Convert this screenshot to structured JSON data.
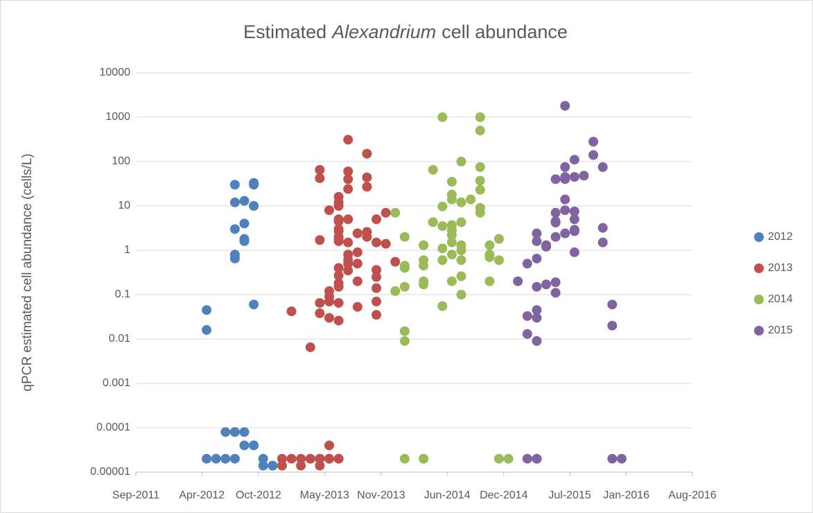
{
  "chart_data": {
    "type": "scatter",
    "title": [
      "Estimated",
      "Alexandrium",
      "cell abundance"
    ],
    "ylabel": "qPCR estimated cell abundance (cells/L)",
    "log_y": true,
    "grid": true,
    "legend": "right",
    "xlim": [
      "2011-09",
      "2016-08"
    ],
    "xticks": [
      {
        "value": "2011-09",
        "label": "Sep-2011"
      },
      {
        "value": "2012-04",
        "label": "Apr-2012"
      },
      {
        "value": "2012-10",
        "label": "Oct-2012"
      },
      {
        "value": "2013-05",
        "label": "May-2013"
      },
      {
        "value": "2013-11",
        "label": "Nov-2013"
      },
      {
        "value": "2014-06",
        "label": "Jun-2014"
      },
      {
        "value": "2014-12",
        "label": "Dec-2014"
      },
      {
        "value": "2015-07",
        "label": "Jul-2015"
      },
      {
        "value": "2016-01",
        "label": "Jan-2016"
      },
      {
        "value": "2016-08",
        "label": "Aug-2016"
      }
    ],
    "ylim": [
      1e-05,
      10000
    ],
    "yticks": [
      1e-05,
      0.0001,
      0.001,
      0.01,
      0.1,
      1,
      10,
      100,
      1000,
      10000
    ],
    "series": [
      {
        "name": "2012",
        "color": "#4f81bd",
        "x": [
          "2012-04",
          "2012-04",
          "2012-04",
          "2012-05",
          "2012-06",
          "2012-07",
          "2012-06",
          "2012-07",
          "2012-07",
          "2012-08",
          "2012-07",
          "2012-07",
          "2012-07",
          "2012-07",
          "2012-07",
          "2012-08",
          "2012-08",
          "2012-08",
          "2012-08",
          "2012-09",
          "2012-09",
          "2012-09",
          "2012-08",
          "2012-09",
          "2012-09",
          "2012-09",
          "2012-10",
          "2012-10",
          "2012-11",
          "2012-11"
        ],
        "values": [
          0.045,
          0.016,
          2e-05,
          2e-05,
          2e-05,
          2e-05,
          8e-05,
          8e-05,
          8e-05,
          8e-05,
          3,
          0.8,
          0.65,
          30,
          12,
          13,
          4,
          1.6,
          1.8,
          33,
          30,
          10,
          4e-05,
          4e-05,
          4e-05,
          0.06,
          2e-05,
          1.4e-05,
          1.4e-05,
          1.4e-05
        ]
      },
      {
        "name": "2013",
        "color": "#c0504d",
        "x": [
          "2012-12",
          "2012-12",
          "2013-01",
          "2013-01",
          "2013-02",
          "2013-02",
          "2013-03",
          "2013-03",
          "2013-04",
          "2013-04",
          "2013-05",
          "2013-05",
          "2013-06",
          "2013-06",
          "2013-05",
          "2013-04",
          "2013-04",
          "2013-04",
          "2013-04",
          "2013-03",
          "2013-04",
          "2013-04",
          "2013-05",
          "2013-05",
          "2013-05",
          "2013-05",
          "2013-05",
          "2013-06",
          "2013-06",
          "2013-06",
          "2013-06",
          "2013-06",
          "2013-06",
          "2013-06",
          "2013-06",
          "2013-06",
          "2013-06",
          "2013-06",
          "2013-06",
          "2013-06",
          "2013-06",
          "2013-06",
          "2013-06",
          "2013-07",
          "2013-07",
          "2013-07",
          "2013-07",
          "2013-07",
          "2013-07",
          "2013-07",
          "2013-07",
          "2013-07",
          "2013-07",
          "2013-08",
          "2013-08",
          "2013-08",
          "2013-08",
          "2013-08",
          "2013-08",
          "2013-09",
          "2013-09",
          "2013-09",
          "2013-09",
          "2013-09",
          "2013-10",
          "2013-10",
          "2013-10",
          "2013-10",
          "2013-10",
          "2013-10",
          "2013-10",
          "2013-11",
          "2013-11",
          "2013-12"
        ],
        "values": [
          2e-05,
          1.4e-05,
          0.042,
          2e-05,
          2e-05,
          1.4e-05,
          2e-05,
          2e-05,
          2e-05,
          2e-05,
          2e-05,
          2e-05,
          2e-05,
          2e-05,
          4e-05,
          1.4e-05,
          65,
          42,
          1.7,
          0.0065,
          0.065,
          0.038,
          0.12,
          0.09,
          0.07,
          0.03,
          8,
          16,
          2.7,
          5,
          2,
          3,
          1.6,
          0.27,
          0.18,
          0.065,
          0.15,
          1.8,
          0.4,
          12,
          10,
          4.5,
          0.026,
          310,
          0.8,
          0.5,
          1.5,
          60,
          40,
          24,
          0.6,
          0.35,
          5,
          0.2,
          2.4,
          0.053,
          0.9,
          0.5,
          2.4,
          2,
          2.6,
          150,
          44,
          27,
          5,
          1.5,
          0.07,
          0.36,
          0.25,
          0.14,
          0.035,
          1.4,
          7,
          0.55
        ]
      },
      {
        "name": "2014",
        "color": "#9bbb59",
        "x": [
          "2013-12",
          "2014-01",
          "2014-01",
          "2014-01",
          "2014-01",
          "2014-01",
          "2014-01",
          "2014-01",
          "2014-03",
          "2014-03",
          "2013-12",
          "2014-03",
          "2014-03",
          "2014-03",
          "2014-03",
          "2014-03",
          "2014-03",
          "2014-04",
          "2014-04",
          "2014-04",
          "2014-05",
          "2014-05",
          "2014-05",
          "2014-05",
          "2014-05",
          "2014-05",
          "2014-06",
          "2014-06",
          "2014-06",
          "2014-06",
          "2014-06",
          "2014-06",
          "2014-06",
          "2014-06",
          "2014-06",
          "2014-07",
          "2014-07",
          "2014-07",
          "2014-07",
          "2014-07",
          "2014-07",
          "2014-07",
          "2014-07",
          "2014-08",
          "2014-09",
          "2014-09",
          "2014-09",
          "2014-09",
          "2014-09",
          "2014-09",
          "2014-09",
          "2014-10",
          "2014-10",
          "2014-10",
          "2014-10",
          "2014-11",
          "2014-11",
          "2014-11",
          "2014-12"
        ],
        "values": [
          7,
          2,
          0.45,
          0.4,
          0.15,
          0.015,
          0.009,
          2e-05,
          2e-05,
          2e-05,
          0.12,
          1.3,
          1.3,
          0.45,
          0.6,
          0.2,
          0.17,
          4.3,
          4.3,
          65,
          3.5,
          9.7,
          0.055,
          0.6,
          1.1,
          1000,
          35,
          0.2,
          3.7,
          14,
          2.8,
          18,
          2.2,
          1.5,
          0.8,
          1,
          0.6,
          0.26,
          0.1,
          4.3,
          1.3,
          100,
          12,
          14,
          75,
          500,
          1000,
          37,
          23,
          9,
          7,
          1.3,
          0.8,
          0.7,
          0.2,
          1.8,
          0.6,
          2e-05,
          2e-05
        ]
      },
      {
        "name": "2015",
        "color": "#8064a2",
        "x": [
          "2015-01",
          "2015-02",
          "2015-02",
          "2015-02",
          "2015-02",
          "2015-03",
          "2015-03",
          "2015-03",
          "2015-03",
          "2015-03",
          "2015-03",
          "2015-03",
          "2015-03",
          "2015-03",
          "2015-03",
          "2015-04",
          "2015-04",
          "2015-04",
          "2015-05",
          "2015-05",
          "2015-05",
          "2015-05",
          "2015-05",
          "2015-05",
          "2015-05",
          "2015-06",
          "2015-06",
          "2015-06",
          "2015-06",
          "2015-06",
          "2015-06",
          "2015-06",
          "2015-07",
          "2015-07",
          "2015-07",
          "2015-07",
          "2015-07",
          "2015-07",
          "2015-07",
          "2015-08",
          "2015-09",
          "2015-09",
          "2015-10",
          "2015-10",
          "2015-10",
          "2015-11",
          "2015-11",
          "2015-11",
          "2015-12"
        ],
        "values": [
          0.2,
          0.033,
          0.5,
          0.013,
          2e-05,
          2e-05,
          2e-05,
          2e-05,
          2.4,
          0.65,
          1.6,
          0.15,
          0.045,
          0.03,
          0.009,
          1.3,
          1.2,
          0.17,
          0.11,
          0.19,
          40,
          7,
          4.5,
          4.2,
          2,
          1800,
          75,
          14,
          40,
          8,
          2.4,
          45,
          0.9,
          2.7,
          5,
          7.5,
          45,
          110,
          2.9,
          48,
          280,
          140,
          75,
          3.2,
          1.5,
          0.02,
          0.06,
          2e-05,
          2e-05
        ]
      }
    ]
  }
}
